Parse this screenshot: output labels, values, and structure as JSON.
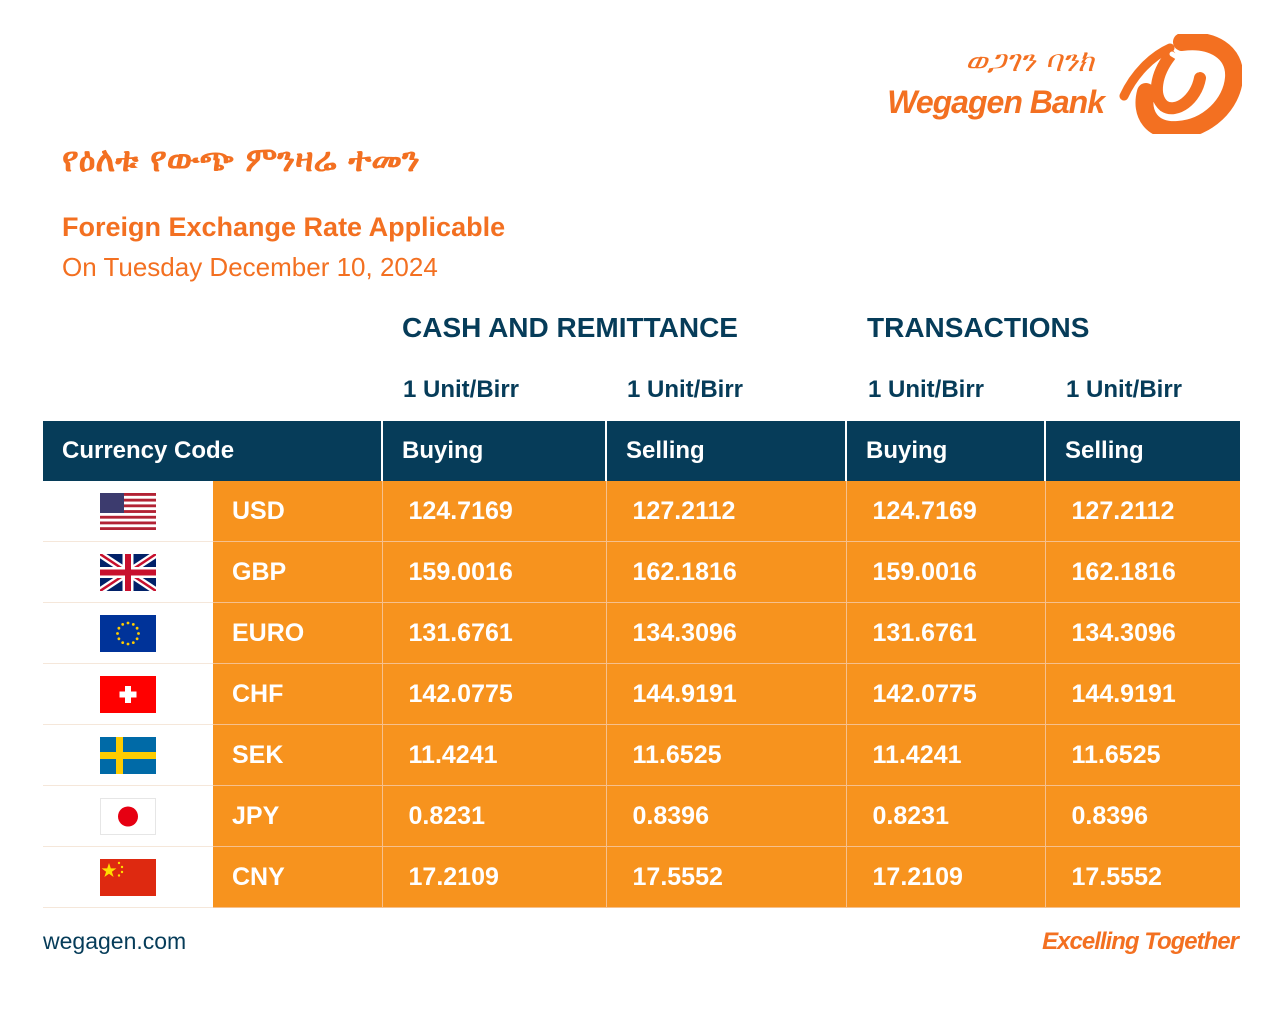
{
  "brand": {
    "name_amharic": "ወጋገን ባንክ",
    "name_english": "Wegagen Bank",
    "colors": {
      "orange": "#f37021",
      "navy": "#063c59",
      "cell_orange": "#f7931e"
    }
  },
  "heading": {
    "title_amharic": "የዕለቱ የውጭ ምንዛሬ ተመን",
    "title_english": "Foreign Exchange Rate Applicable",
    "date_line": "On Tuesday December 10, 2024"
  },
  "groups": {
    "cash": "CASH AND REMITTANCE",
    "transactions": "TRANSACTIONS"
  },
  "units": [
    "1 Unit/Birr",
    "1 Unit/Birr",
    "1 Unit/Birr",
    "1 Unit/Birr"
  ],
  "columns": {
    "currency_code": "Currency Code",
    "cash_buying": "Buying",
    "cash_selling": "Selling",
    "tx_buying": "Buying",
    "tx_selling": "Selling"
  },
  "rates": [
    {
      "flag": "us-flag-icon",
      "code": "USD",
      "cash_buy": "124.7169",
      "cash_sell": "127.2112",
      "tx_buy": "124.7169",
      "tx_sell": "127.2112"
    },
    {
      "flag": "uk-flag-icon",
      "code": "GBP",
      "cash_buy": "159.0016",
      "cash_sell": "162.1816",
      "tx_buy": "159.0016",
      "tx_sell": "162.1816"
    },
    {
      "flag": "eu-flag-icon",
      "code": "EURO",
      "cash_buy": "131.6761",
      "cash_sell": "134.3096",
      "tx_buy": "131.6761",
      "tx_sell": "134.3096"
    },
    {
      "flag": "swiss-flag-icon",
      "code": "CHF",
      "cash_buy": "142.0775",
      "cash_sell": "144.9191",
      "tx_buy": "142.0775",
      "tx_sell": "144.9191"
    },
    {
      "flag": "sweden-flag-icon",
      "code": "SEK",
      "cash_buy": "11.4241",
      "cash_sell": "11.6525",
      "tx_buy": "11.4241",
      "tx_sell": "11.6525"
    },
    {
      "flag": "japan-flag-icon",
      "code": "JPY",
      "cash_buy": "0.8231",
      "cash_sell": "0.8396",
      "tx_buy": "0.8231",
      "tx_sell": "0.8396"
    },
    {
      "flag": "china-flag-icon",
      "code": "CNY",
      "cash_buy": "17.2109",
      "cash_sell": "17.5552",
      "tx_buy": "17.2109",
      "tx_sell": "17.5552"
    }
  ],
  "footer": {
    "website": "wegagen.com",
    "tagline": "Excelling Together"
  }
}
